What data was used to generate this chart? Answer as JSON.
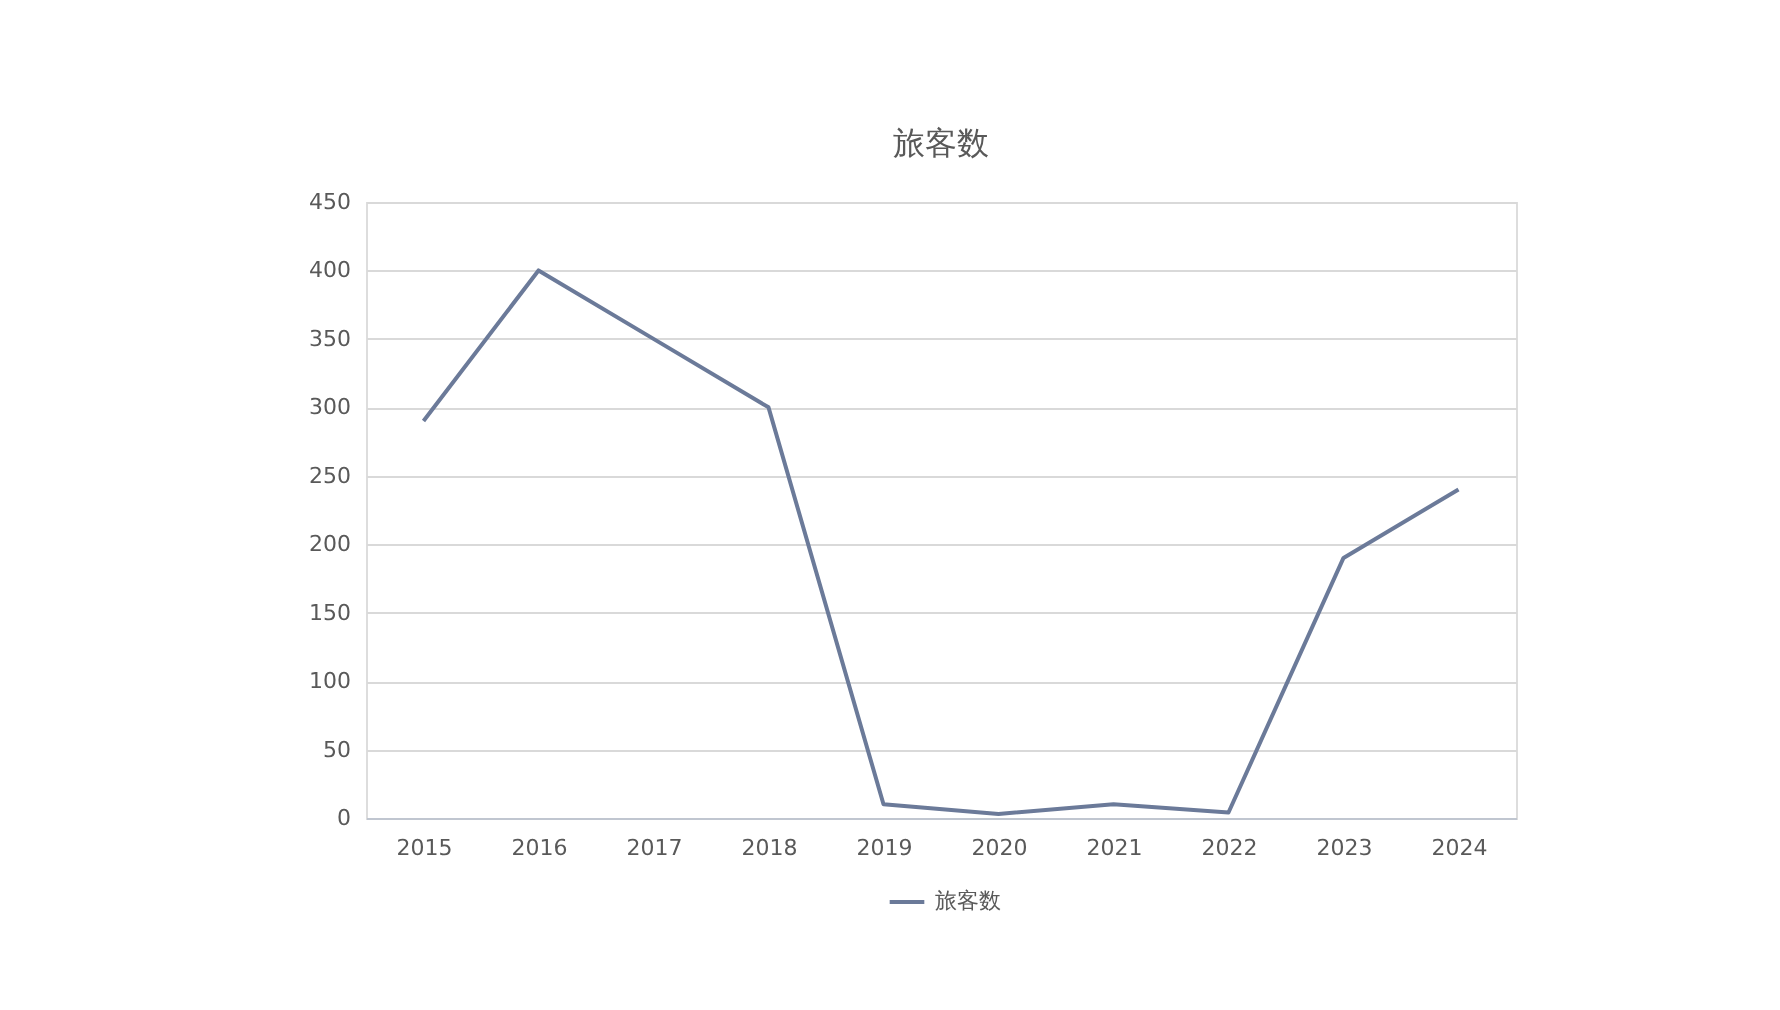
{
  "chart_data": {
    "type": "line",
    "title": "旅客数",
    "categories": [
      "2015",
      "2016",
      "2017",
      "2018",
      "2019",
      "2020",
      "2021",
      "2022",
      "2023",
      "2024"
    ],
    "series": [
      {
        "name": "旅客数",
        "color": "#6b7a99",
        "values": [
          290,
          400,
          350,
          300,
          10,
          3,
          10,
          4,
          190,
          240
        ]
      }
    ],
    "ylim": [
      0,
      450
    ],
    "yticks": [
      0,
      50,
      100,
      150,
      200,
      250,
      300,
      350,
      400,
      450
    ],
    "grid": "y",
    "legend": "bottom",
    "line_style": "solid"
  }
}
